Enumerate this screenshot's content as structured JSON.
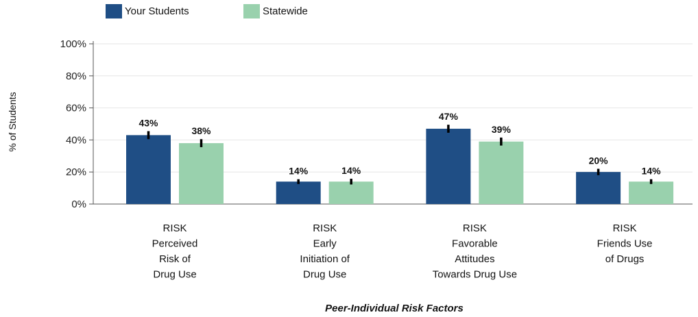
{
  "chart_data": {
    "type": "bar",
    "title": "",
    "xlabel": "Peer-Individual Risk Factors",
    "ylabel": "% of Students",
    "ylim": [
      0,
      100
    ],
    "yticks": [
      "0%",
      "20%",
      "40%",
      "60%",
      "80%",
      "100%"
    ],
    "ytick_values": [
      0,
      20,
      40,
      60,
      80,
      100
    ],
    "grid": true,
    "legend_position": "top-left",
    "categories": [
      [
        "RISK",
        "Perceived",
        "Risk of",
        "Drug Use"
      ],
      [
        "RISK",
        "Early",
        "Initiation of",
        "Drug Use"
      ],
      [
        "RISK",
        "Favorable",
        "Attitudes",
        "Towards Drug Use"
      ],
      [
        "RISK",
        "Friends Use",
        "of Drugs"
      ]
    ],
    "series": [
      {
        "name": "Your Students",
        "color": "#1f4e85",
        "values": [
          43,
          14,
          47,
          20
        ],
        "labels": [
          "43%",
          "14%",
          "47%",
          "20%"
        ],
        "error": [
          2.5,
          1.5,
          2.5,
          2
        ]
      },
      {
        "name": "Statewide",
        "color": "#99d1ad",
        "values": [
          38,
          14,
          39,
          14
        ],
        "labels": [
          "38%",
          "14%",
          "39%",
          "14%"
        ],
        "error": [
          2.5,
          1.8,
          2.5,
          1.5
        ]
      }
    ]
  }
}
